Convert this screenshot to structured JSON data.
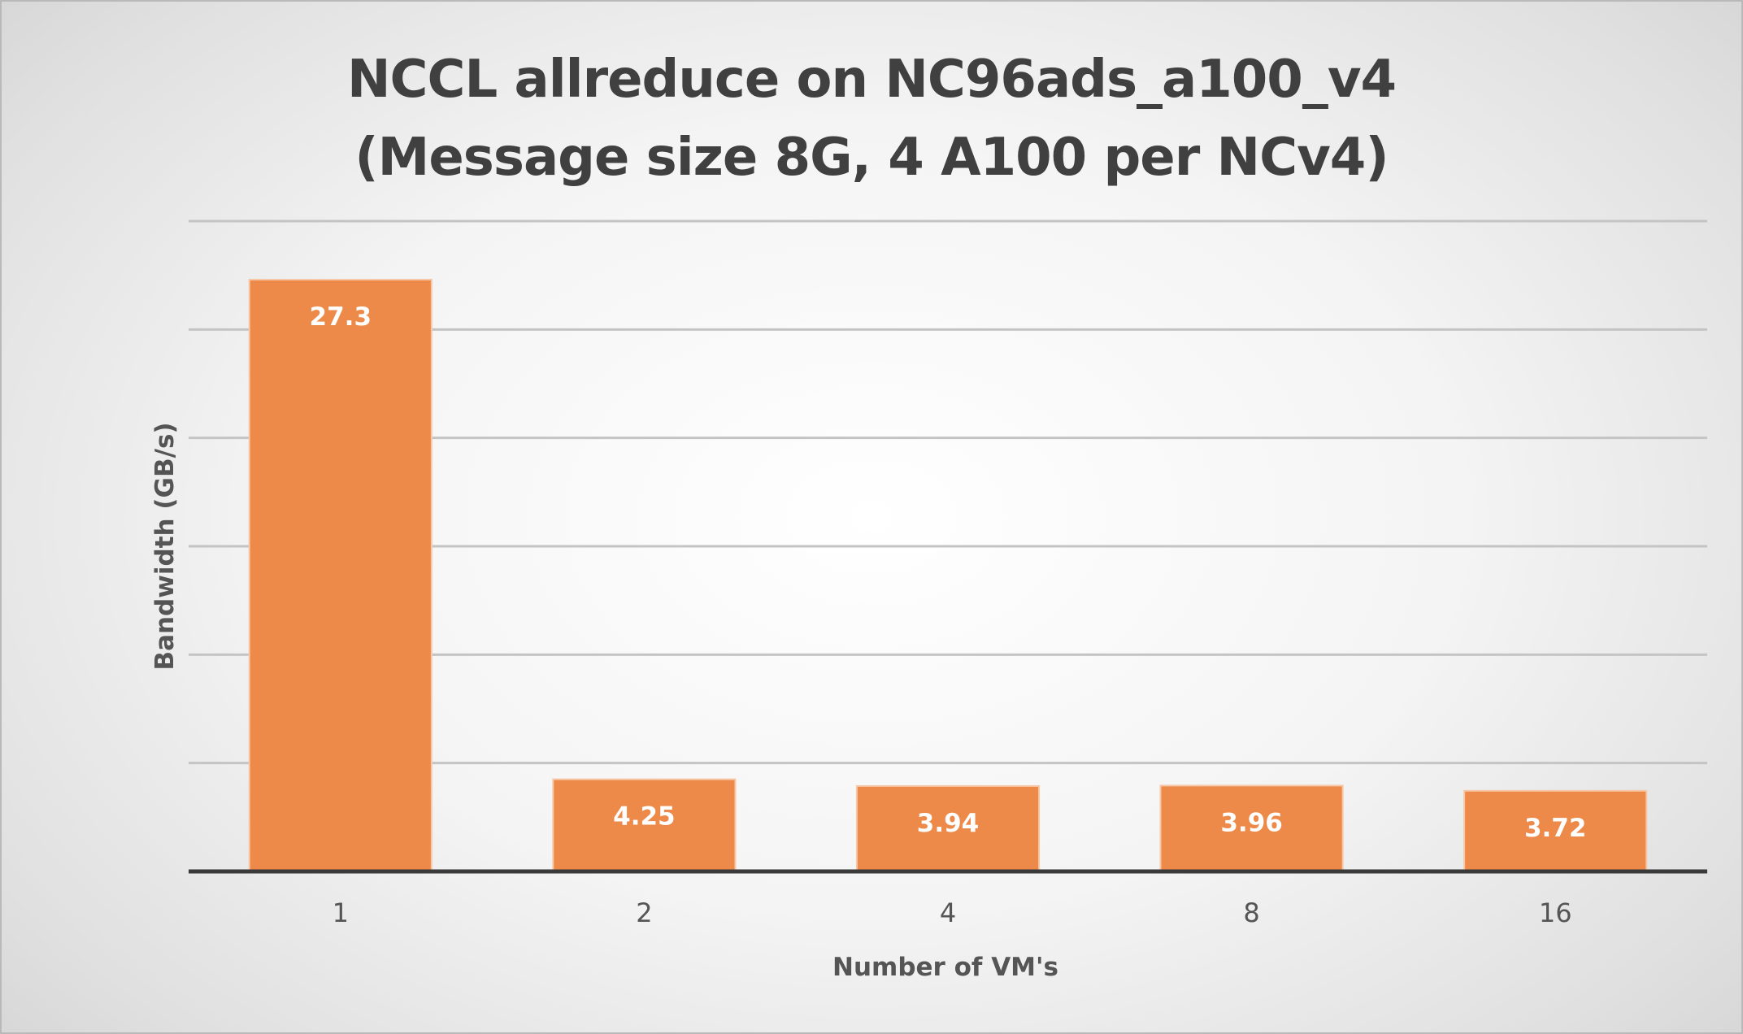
{
  "chart_data": {
    "type": "bar",
    "title_lines": [
      "NCCL allreduce on NC96ads_a100_v4",
      "(Message size 8G, 4 A100 per NCv4)"
    ],
    "xlabel": "Number of VM's",
    "ylabel": "Bandwidth (GB/s)",
    "categories": [
      "1",
      "2",
      "4",
      "8",
      "16"
    ],
    "values": [
      27.3,
      4.25,
      3.94,
      3.96,
      3.72
    ],
    "data_labels": [
      "27.3",
      "4.25",
      "3.94",
      "3.96",
      "3.72"
    ],
    "ylim": [
      0,
      30
    ],
    "y_gridline_step": 5,
    "y_tick_labels_shown": false,
    "grid": true,
    "legend": "none",
    "bar_color": "#ED8A4A"
  }
}
